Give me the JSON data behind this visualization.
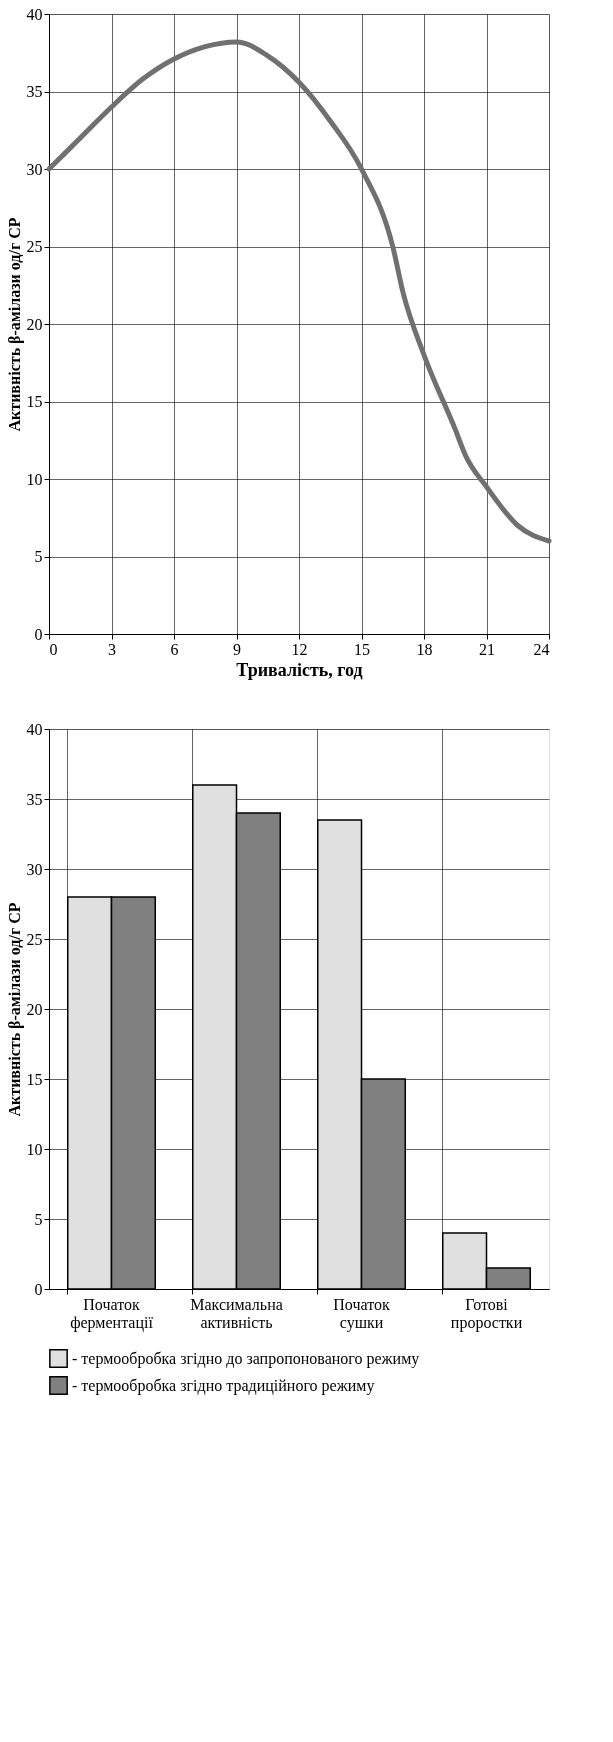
{
  "chart_data": [
    {
      "type": "line",
      "xlabel": "Тривалість, год",
      "ylabel": "Активність β-амілази од/г СР",
      "x": [
        0,
        1.5,
        3,
        4.5,
        6,
        7.5,
        9,
        10.5,
        12,
        13.5,
        15,
        16.5,
        17,
        18,
        19.5,
        20,
        21,
        22.5,
        24
      ],
      "series": [
        {
          "color": "#707070",
          "values": [
            30,
            32,
            34,
            35.8,
            37.1,
            37.9,
            38.2,
            37.3,
            35.6,
            33.1,
            30,
            25,
            22,
            18,
            13.2,
            11.5,
            9.5,
            7,
            6
          ]
        }
      ],
      "xlim": [
        0,
        24
      ],
      "xticks": [
        0,
        3,
        6,
        9,
        12,
        15,
        18,
        21,
        24
      ],
      "ylim": [
        0,
        40
      ],
      "yticks": [
        0,
        5,
        10,
        15,
        20,
        25,
        30,
        35,
        40
      ],
      "grid": true,
      "marker": "none",
      "line_style": "solid"
    },
    {
      "type": "bar",
      "ylabel": "Активність β-амілази од/г СР",
      "categories": [
        "Початок ферментації",
        "Максимальна активність",
        "Початок сушки",
        "Готові проростки"
      ],
      "series": [
        {
          "name": "- термообробка згідно до запропонованого режиму",
          "color": "#e0e0e0",
          "values": [
            28,
            36,
            33.5,
            4
          ]
        },
        {
          "name": "- термообробка згідно традиційного режиму",
          "color": "#808080",
          "values": [
            28,
            34,
            15,
            1.5
          ]
        }
      ],
      "ylim": [
        0,
        40
      ],
      "yticks": [
        0,
        5,
        10,
        15,
        20,
        25,
        30,
        35,
        40
      ],
      "grid": true,
      "legend": "bottom"
    }
  ]
}
